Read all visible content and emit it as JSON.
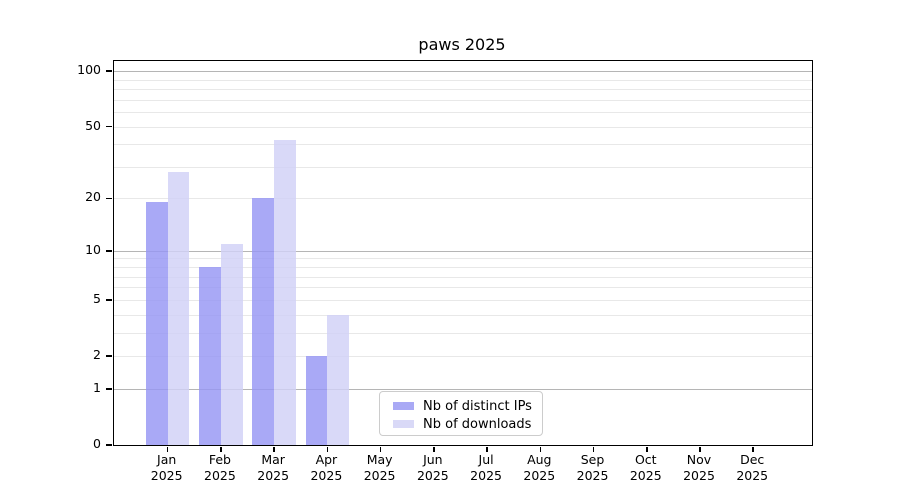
{
  "title": "paws 2025",
  "colors": {
    "bar_distinct_ips": "rgba(150,150,244,0.82)",
    "bar_downloads": "rgba(209,209,246,0.82)",
    "swatch_distinct_ips": "#a9a9f5",
    "swatch_downloads": "#d9d9f7",
    "grid_major": "#b5b5b5",
    "grid_minor": "#e8e8e8",
    "axis_line": "#000000",
    "legend_border": "#cccccc"
  },
  "legend": {
    "items": [
      {
        "label": "Nb of distinct IPs",
        "swatch_color": "#a9a9f5"
      },
      {
        "label": "Nb of downloads",
        "swatch_color": "#d9d9f7"
      }
    ]
  },
  "y_axis": {
    "tick_values": [
      0,
      1,
      2,
      5,
      10,
      20,
      50,
      100
    ],
    "gridlines_major": [
      1,
      10,
      100
    ],
    "gridlines_minor": [
      2,
      3,
      4,
      5,
      6,
      7,
      8,
      9,
      20,
      30,
      40,
      50,
      60,
      70,
      80,
      90
    ]
  },
  "chart_data": {
    "type": "bar",
    "title": "paws 2025",
    "categories": [
      "Jan 2025",
      "Feb 2025",
      "Mar 2025",
      "Apr 2025",
      "May 2025",
      "Jun 2025",
      "Jul 2025",
      "Aug 2025",
      "Sep 2025",
      "Oct 2025",
      "Nov 2025",
      "Dec 2025"
    ],
    "series": [
      {
        "name": "Nb of distinct IPs",
        "color_key": "bar_distinct_ips",
        "values": [
          19,
          8,
          20,
          2,
          0,
          0,
          0,
          0,
          0,
          0,
          0,
          0
        ]
      },
      {
        "name": "Nb of downloads",
        "color_key": "bar_downloads",
        "values": [
          28,
          11,
          42,
          4,
          0,
          0,
          0,
          0,
          0,
          0,
          0,
          0
        ]
      }
    ],
    "xlabel": "",
    "ylabel": "",
    "yscale": "log10(1+v)",
    "ylim": [
      0,
      113.5
    ],
    "ytick_values": [
      0,
      1,
      2,
      5,
      10,
      20,
      50,
      100
    ],
    "grid": true,
    "legend_position": "lower center"
  }
}
